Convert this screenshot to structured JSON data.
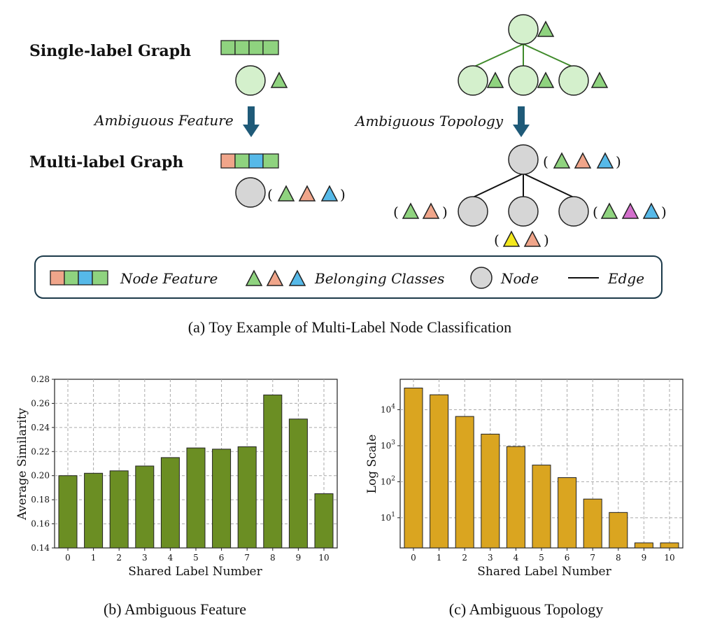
{
  "toy": {
    "single_label": "Single-label Graph",
    "multi_label": "Multi-label Graph",
    "ambiguous_feature": "Ambiguous Feature",
    "ambiguous_topology": "Ambiguous Topology",
    "paren_open": "(",
    "paren_close": ")",
    "legend": {
      "node_feature": "Node Feature",
      "belonging_classes": "Belonging Classes",
      "node": "Node",
      "edge": "Edge"
    },
    "caption": "(a)  Toy Example of Multi-Label Node Classification"
  },
  "colors": {
    "green": "#8fd37f",
    "salmon": "#f0a58a",
    "blue": "#56b9e8",
    "magenta": "#d36fcc",
    "yellow": "#f3e81c",
    "light_node": "#d4f0cc",
    "gray_node": "#d6d6d6",
    "arrow": "#1f5a78",
    "tree_green_edge": "#3f8a2a",
    "bar_b": "#6b8e23",
    "bar_c": "#daa520"
  },
  "chart_data": [
    {
      "type": "bar",
      "categories": [
        "0",
        "1",
        "2",
        "3",
        "4",
        "5",
        "6",
        "7",
        "8",
        "9",
        "10"
      ],
      "values": [
        0.2,
        0.202,
        0.204,
        0.208,
        0.215,
        0.223,
        0.222,
        0.224,
        0.267,
        0.247,
        0.185
      ],
      "xlabel": "Shared Label Number",
      "ylabel": "Average Similarity",
      "ylim": [
        0.14,
        0.28
      ],
      "yticks": [
        "0.14",
        "0.16",
        "0.18",
        "0.20",
        "0.22",
        "0.24",
        "0.26",
        "0.28"
      ],
      "grid": true,
      "caption": "(b)  Ambiguous Feature"
    },
    {
      "type": "bar",
      "scale": "log",
      "categories": [
        "0",
        "1",
        "2",
        "3",
        "4",
        "5",
        "6",
        "7",
        "8",
        "9",
        "10"
      ],
      "values": [
        40000,
        26000,
        6500,
        2100,
        950,
        290,
        130,
        33,
        14,
        2,
        2
      ],
      "xlabel": "Shared Label Number",
      "ylabel": "Log Scale",
      "ylim": [
        1.45,
        70000
      ],
      "yticks": [
        {
          "base": "10",
          "exp": "1"
        },
        {
          "base": "10",
          "exp": "2"
        },
        {
          "base": "10",
          "exp": "3"
        },
        {
          "base": "10",
          "exp": "4"
        }
      ],
      "grid": true,
      "caption": "(c)  Ambiguous Topology"
    }
  ]
}
